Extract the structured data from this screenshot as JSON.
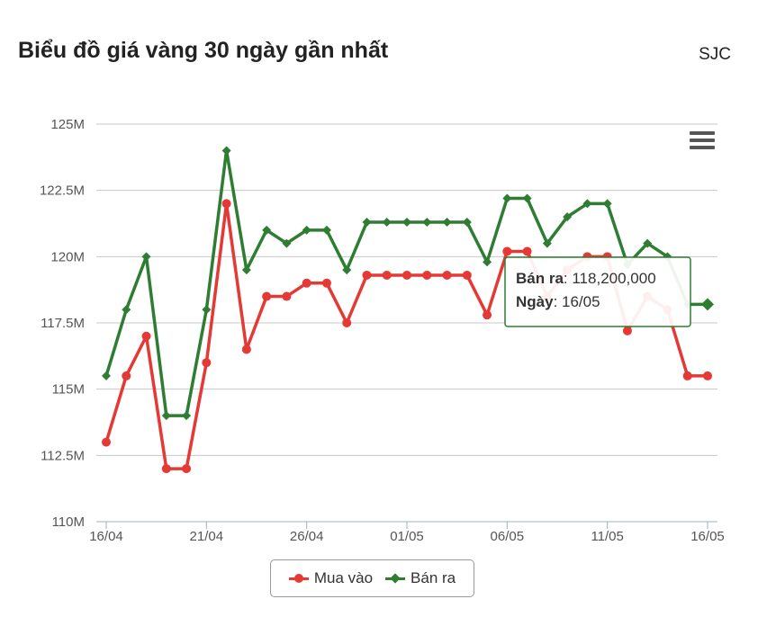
{
  "header": {
    "title": "Biểu đồ giá vàng 30 ngày gần nhất",
    "brand": "SJC"
  },
  "menu": {
    "icon": "hamburger-menu-icon"
  },
  "tooltip": {
    "series_label": "Bán ra",
    "series_value": "118,200,000",
    "date_label": "Ngày",
    "date_value": "16/05"
  },
  "chart_data": {
    "type": "line",
    "title": "Biểu đồ giá vàng 30 ngày gần nhất",
    "xlabel": "",
    "ylabel": "",
    "x": [
      "16/04",
      "17/04",
      "18/04",
      "19/04",
      "20/04",
      "21/04",
      "22/04",
      "23/04",
      "24/04",
      "25/04",
      "26/04",
      "27/04",
      "28/04",
      "29/04",
      "30/04",
      "01/05",
      "02/05",
      "03/05",
      "04/05",
      "05/05",
      "06/05",
      "07/05",
      "08/05",
      "09/05",
      "10/05",
      "11/05",
      "12/05",
      "13/05",
      "14/05",
      "15/05",
      "16/05"
    ],
    "x_tick_labels": [
      "16/04",
      "21/04",
      "26/04",
      "01/05",
      "06/05",
      "11/05",
      "16/05"
    ],
    "y_tick_labels": [
      "110M",
      "112.5M",
      "115M",
      "117.5M",
      "120M",
      "122.5M",
      "125M"
    ],
    "y_ticks": [
      110,
      112.5,
      115,
      117.5,
      120,
      122.5,
      125
    ],
    "ylim": [
      110,
      125
    ],
    "y_unit": "million VND",
    "grid": true,
    "legend_position": "bottom",
    "series": [
      {
        "name": "Mua vào",
        "color": "#e53935",
        "marker": "circle",
        "values": [
          113,
          115.5,
          117,
          112,
          112,
          116,
          122,
          116.5,
          118.5,
          118.5,
          119,
          119,
          117.5,
          119.3,
          119.3,
          119.3,
          119.3,
          119.3,
          119.3,
          117.8,
          120.2,
          120.2,
          118.5,
          119.5,
          120,
          120,
          117.2,
          118.5,
          118,
          115.5,
          115.5
        ]
      },
      {
        "name": "Bán ra",
        "color": "#2e7d32",
        "marker": "diamond",
        "values": [
          115.5,
          118,
          120,
          114,
          114,
          118,
          124,
          119.5,
          121,
          120.5,
          121,
          121,
          119.5,
          121.3,
          121.3,
          121.3,
          121.3,
          121.3,
          121.3,
          119.8,
          122.2,
          122.2,
          120.5,
          121.5,
          122,
          122,
          119.7,
          120.5,
          120,
          118.2,
          118.2
        ]
      }
    ]
  }
}
